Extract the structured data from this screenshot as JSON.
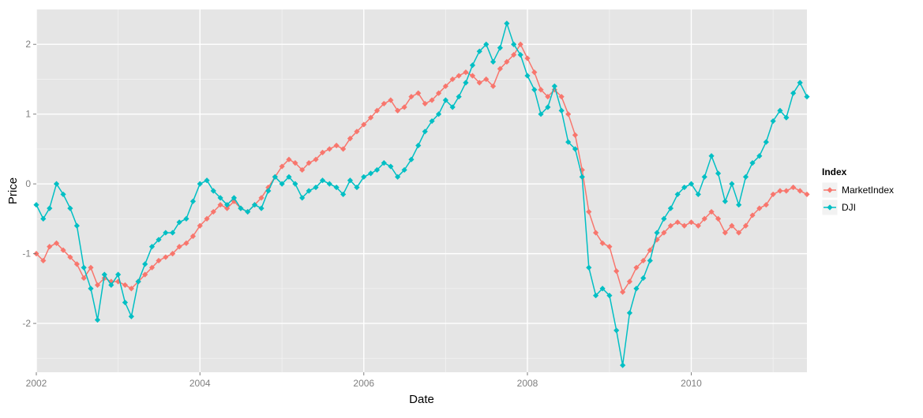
{
  "chart_data": {
    "type": "line",
    "title": "",
    "xlabel": "Date",
    "ylabel": "Price",
    "x_tick_labels": [
      "2002",
      "2004",
      "2006",
      "2008",
      "2010"
    ],
    "y_tick_labels": [
      "2",
      "1",
      "0",
      "-1",
      "-2"
    ],
    "xlim": [
      "2002-01-01",
      "2011-06-01"
    ],
    "ylim": [
      -2.7,
      2.5
    ],
    "grid": true,
    "legend": {
      "title": "Index",
      "placement": "right"
    },
    "series": [
      {
        "name": "MarketIndex",
        "color": "#F8766D",
        "points": [
          [
            "2002-01-01",
            -1.0
          ],
          [
            "2002-02-01",
            -1.1
          ],
          [
            "2002-03-01",
            -0.9
          ],
          [
            "2002-04-01",
            -0.85
          ],
          [
            "2002-05-01",
            -0.95
          ],
          [
            "2002-06-01",
            -1.05
          ],
          [
            "2002-07-01",
            -1.15
          ],
          [
            "2002-08-01",
            -1.35
          ],
          [
            "2002-09-01",
            -1.2
          ],
          [
            "2002-10-01",
            -1.45
          ],
          [
            "2002-11-01",
            -1.35
          ],
          [
            "2002-12-01",
            -1.4
          ],
          [
            "2003-01-01",
            -1.4
          ],
          [
            "2003-02-01",
            -1.45
          ],
          [
            "2003-03-01",
            -1.5
          ],
          [
            "2003-04-01",
            -1.4
          ],
          [
            "2003-05-01",
            -1.3
          ],
          [
            "2003-06-01",
            -1.2
          ],
          [
            "2003-07-01",
            -1.1
          ],
          [
            "2003-08-01",
            -1.05
          ],
          [
            "2003-09-01",
            -1.0
          ],
          [
            "2003-10-01",
            -0.9
          ],
          [
            "2003-11-01",
            -0.85
          ],
          [
            "2003-12-01",
            -0.75
          ],
          [
            "2004-01-01",
            -0.6
          ],
          [
            "2004-02-01",
            -0.5
          ],
          [
            "2004-03-01",
            -0.4
          ],
          [
            "2004-04-01",
            -0.3
          ],
          [
            "2004-05-01",
            -0.35
          ],
          [
            "2004-06-01",
            -0.25
          ],
          [
            "2004-07-01",
            -0.35
          ],
          [
            "2004-08-01",
            -0.4
          ],
          [
            "2004-09-01",
            -0.3
          ],
          [
            "2004-10-01",
            -0.2
          ],
          [
            "2004-11-01",
            -0.05
          ],
          [
            "2004-12-01",
            0.1
          ],
          [
            "2005-01-01",
            0.25
          ],
          [
            "2005-02-01",
            0.35
          ],
          [
            "2005-03-01",
            0.3
          ],
          [
            "2005-04-01",
            0.2
          ],
          [
            "2005-05-01",
            0.3
          ],
          [
            "2005-06-01",
            0.35
          ],
          [
            "2005-07-01",
            0.45
          ],
          [
            "2005-08-01",
            0.5
          ],
          [
            "2005-09-01",
            0.55
          ],
          [
            "2005-10-01",
            0.5
          ],
          [
            "2005-11-01",
            0.65
          ],
          [
            "2005-12-01",
            0.75
          ],
          [
            "2006-01-01",
            0.85
          ],
          [
            "2006-02-01",
            0.95
          ],
          [
            "2006-03-01",
            1.05
          ],
          [
            "2006-04-01",
            1.15
          ],
          [
            "2006-05-01",
            1.2
          ],
          [
            "2006-06-01",
            1.05
          ],
          [
            "2006-07-01",
            1.1
          ],
          [
            "2006-08-01",
            1.25
          ],
          [
            "2006-09-01",
            1.3
          ],
          [
            "2006-10-01",
            1.15
          ],
          [
            "2006-11-01",
            1.2
          ],
          [
            "2006-12-01",
            1.3
          ],
          [
            "2007-01-01",
            1.4
          ],
          [
            "2007-02-01",
            1.5
          ],
          [
            "2007-03-01",
            1.55
          ],
          [
            "2007-04-01",
            1.6
          ],
          [
            "2007-05-01",
            1.55
          ],
          [
            "2007-06-01",
            1.45
          ],
          [
            "2007-07-01",
            1.5
          ],
          [
            "2007-08-01",
            1.4
          ],
          [
            "2007-09-01",
            1.65
          ],
          [
            "2007-10-01",
            1.75
          ],
          [
            "2007-11-01",
            1.85
          ],
          [
            "2007-12-01",
            2.0
          ],
          [
            "2008-01-01",
            1.8
          ],
          [
            "2008-02-01",
            1.6
          ],
          [
            "2008-03-01",
            1.35
          ],
          [
            "2008-04-01",
            1.25
          ],
          [
            "2008-05-01",
            1.35
          ],
          [
            "2008-06-01",
            1.25
          ],
          [
            "2008-07-01",
            1.0
          ],
          [
            "2008-08-01",
            0.7
          ],
          [
            "2008-09-01",
            0.2
          ],
          [
            "2008-10-01",
            -0.4
          ],
          [
            "2008-11-01",
            -0.7
          ],
          [
            "2008-12-01",
            -0.85
          ],
          [
            "2009-01-01",
            -0.9
          ],
          [
            "2009-02-01",
            -1.25
          ],
          [
            "2009-03-01",
            -1.55
          ],
          [
            "2009-04-01",
            -1.4
          ],
          [
            "2009-05-01",
            -1.2
          ],
          [
            "2009-06-01",
            -1.1
          ],
          [
            "2009-07-01",
            -0.95
          ],
          [
            "2009-08-01",
            -0.8
          ],
          [
            "2009-09-01",
            -0.7
          ],
          [
            "2009-10-01",
            -0.6
          ],
          [
            "2009-11-01",
            -0.55
          ],
          [
            "2009-12-01",
            -0.6
          ],
          [
            "2010-01-01",
            -0.55
          ],
          [
            "2010-02-01",
            -0.6
          ],
          [
            "2010-03-01",
            -0.5
          ],
          [
            "2010-04-01",
            -0.4
          ],
          [
            "2010-05-01",
            -0.5
          ],
          [
            "2010-06-01",
            -0.7
          ],
          [
            "2010-07-01",
            -0.6
          ],
          [
            "2010-08-01",
            -0.7
          ],
          [
            "2010-09-01",
            -0.6
          ],
          [
            "2010-10-01",
            -0.45
          ],
          [
            "2010-11-01",
            -0.35
          ],
          [
            "2010-12-01",
            -0.3
          ],
          [
            "2011-01-01",
            -0.15
          ],
          [
            "2011-02-01",
            -0.1
          ],
          [
            "2011-03-01",
            -0.1
          ],
          [
            "2011-04-01",
            -0.05
          ],
          [
            "2011-05-01",
            -0.1
          ],
          [
            "2011-06-01",
            -0.15
          ]
        ]
      },
      {
        "name": "DJI",
        "color": "#00BFC4",
        "points": [
          [
            "2002-01-01",
            -0.3
          ],
          [
            "2002-02-01",
            -0.5
          ],
          [
            "2002-03-01",
            -0.35
          ],
          [
            "2002-04-01",
            0.0
          ],
          [
            "2002-05-01",
            -0.15
          ],
          [
            "2002-06-01",
            -0.35
          ],
          [
            "2002-07-01",
            -0.6
          ],
          [
            "2002-08-01",
            -1.2
          ],
          [
            "2002-09-01",
            -1.5
          ],
          [
            "2002-10-01",
            -1.95
          ],
          [
            "2002-11-01",
            -1.3
          ],
          [
            "2002-12-01",
            -1.45
          ],
          [
            "2003-01-01",
            -1.3
          ],
          [
            "2003-02-01",
            -1.7
          ],
          [
            "2003-03-01",
            -1.9
          ],
          [
            "2003-04-01",
            -1.4
          ],
          [
            "2003-05-01",
            -1.15
          ],
          [
            "2003-06-01",
            -0.9
          ],
          [
            "2003-07-01",
            -0.8
          ],
          [
            "2003-08-01",
            -0.7
          ],
          [
            "2003-09-01",
            -0.7
          ],
          [
            "2003-10-01",
            -0.55
          ],
          [
            "2003-11-01",
            -0.5
          ],
          [
            "2003-12-01",
            -0.25
          ],
          [
            "2004-01-01",
            0.0
          ],
          [
            "2004-02-01",
            0.05
          ],
          [
            "2004-03-01",
            -0.1
          ],
          [
            "2004-04-01",
            -0.2
          ],
          [
            "2004-05-01",
            -0.3
          ],
          [
            "2004-06-01",
            -0.2
          ],
          [
            "2004-07-01",
            -0.35
          ],
          [
            "2004-08-01",
            -0.4
          ],
          [
            "2004-09-01",
            -0.3
          ],
          [
            "2004-10-01",
            -0.35
          ],
          [
            "2004-11-01",
            -0.1
          ],
          [
            "2004-12-01",
            0.1
          ],
          [
            "2005-01-01",
            0.0
          ],
          [
            "2005-02-01",
            0.1
          ],
          [
            "2005-03-01",
            0.0
          ],
          [
            "2005-04-01",
            -0.2
          ],
          [
            "2005-05-01",
            -0.1
          ],
          [
            "2005-06-01",
            -0.05
          ],
          [
            "2005-07-01",
            0.05
          ],
          [
            "2005-08-01",
            0.0
          ],
          [
            "2005-09-01",
            -0.05
          ],
          [
            "2005-10-01",
            -0.15
          ],
          [
            "2005-11-01",
            0.05
          ],
          [
            "2005-12-01",
            -0.05
          ],
          [
            "2006-01-01",
            0.1
          ],
          [
            "2006-02-01",
            0.15
          ],
          [
            "2006-03-01",
            0.2
          ],
          [
            "2006-04-01",
            0.3
          ],
          [
            "2006-05-01",
            0.25
          ],
          [
            "2006-06-01",
            0.1
          ],
          [
            "2006-07-01",
            0.2
          ],
          [
            "2006-08-01",
            0.35
          ],
          [
            "2006-09-01",
            0.55
          ],
          [
            "2006-10-01",
            0.75
          ],
          [
            "2006-11-01",
            0.9
          ],
          [
            "2006-12-01",
            1.0
          ],
          [
            "2007-01-01",
            1.2
          ],
          [
            "2007-02-01",
            1.1
          ],
          [
            "2007-03-01",
            1.25
          ],
          [
            "2007-04-01",
            1.45
          ],
          [
            "2007-05-01",
            1.7
          ],
          [
            "2007-06-01",
            1.9
          ],
          [
            "2007-07-01",
            2.0
          ],
          [
            "2007-08-01",
            1.75
          ],
          [
            "2007-09-01",
            1.95
          ],
          [
            "2007-10-01",
            2.3
          ],
          [
            "2007-11-01",
            2.0
          ],
          [
            "2007-12-01",
            1.85
          ],
          [
            "2008-01-01",
            1.55
          ],
          [
            "2008-02-01",
            1.35
          ],
          [
            "2008-03-01",
            1.0
          ],
          [
            "2008-04-01",
            1.1
          ],
          [
            "2008-05-01",
            1.4
          ],
          [
            "2008-06-01",
            1.05
          ],
          [
            "2008-07-01",
            0.6
          ],
          [
            "2008-08-01",
            0.5
          ],
          [
            "2008-09-01",
            0.1
          ],
          [
            "2008-10-01",
            -1.2
          ],
          [
            "2008-11-01",
            -1.6
          ],
          [
            "2008-12-01",
            -1.5
          ],
          [
            "2009-01-01",
            -1.6
          ],
          [
            "2009-02-01",
            -2.1
          ],
          [
            "2009-03-01",
            -2.6
          ],
          [
            "2009-04-01",
            -1.85
          ],
          [
            "2009-05-01",
            -1.5
          ],
          [
            "2009-06-01",
            -1.35
          ],
          [
            "2009-07-01",
            -1.1
          ],
          [
            "2009-08-01",
            -0.7
          ],
          [
            "2009-09-01",
            -0.5
          ],
          [
            "2009-10-01",
            -0.35
          ],
          [
            "2009-11-01",
            -0.15
          ],
          [
            "2009-12-01",
            -0.05
          ],
          [
            "2010-01-01",
            0.0
          ],
          [
            "2010-02-01",
            -0.15
          ],
          [
            "2010-03-01",
            0.1
          ],
          [
            "2010-04-01",
            0.4
          ],
          [
            "2010-05-01",
            0.15
          ],
          [
            "2010-06-01",
            -0.25
          ],
          [
            "2010-07-01",
            0.0
          ],
          [
            "2010-08-01",
            -0.3
          ],
          [
            "2010-09-01",
            0.1
          ],
          [
            "2010-10-01",
            0.3
          ],
          [
            "2010-11-01",
            0.4
          ],
          [
            "2010-12-01",
            0.6
          ],
          [
            "2011-01-01",
            0.9
          ],
          [
            "2011-02-01",
            1.05
          ],
          [
            "2011-03-01",
            0.95
          ],
          [
            "2011-04-01",
            1.3
          ],
          [
            "2011-05-01",
            1.45
          ],
          [
            "2011-06-01",
            1.25
          ]
        ]
      }
    ]
  }
}
